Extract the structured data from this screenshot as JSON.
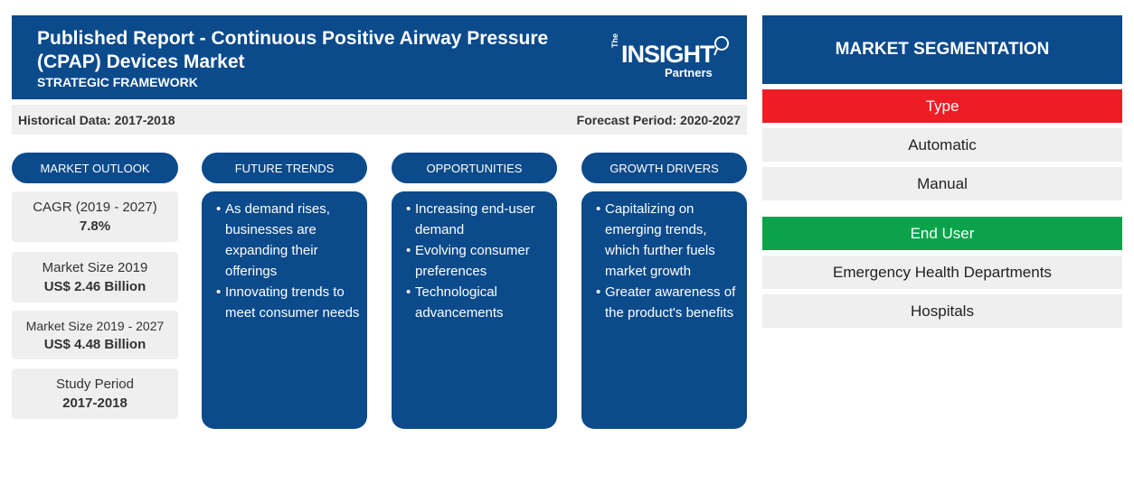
{
  "header": {
    "title": "Published Report - Continuous Positive Airway Pressure (CPAP) Devices Market",
    "subtitle": "STRATEGIC FRAMEWORK",
    "logo": {
      "the": "The",
      "insight": "INSIGHT",
      "partners": "Partners"
    }
  },
  "dates": {
    "historical": "Historical Data: 2017-2018",
    "forecast": "Forecast Period: 2020-2027"
  },
  "columns": {
    "outlook": "MARKET OUTLOOK",
    "trends": "FUTURE TRENDS",
    "opportunities": "OPPORTUNITIES",
    "drivers": "GROWTH DRIVERS"
  },
  "outlook": [
    {
      "label": "CAGR (2019 - 2027)",
      "value": "7.8%"
    },
    {
      "label": "Market Size 2019",
      "value": "US$ 2.46 Billion"
    },
    {
      "label": "Market Size 2019 - 2027",
      "value": "US$ 4.48 Billion"
    },
    {
      "label": "Study Period",
      "value": "2017-2018"
    }
  ],
  "trends": [
    "As demand rises, businesses are expanding their offerings",
    "Innovating trends to meet consumer needs"
  ],
  "opportunities": [
    "Increasing end-user demand",
    "Evolving consumer preferences",
    "Technological advancements"
  ],
  "drivers": [
    "Capitalizing on emerging trends, which further fuels market growth",
    "Greater awareness of the product's benefits"
  ],
  "segmentation": {
    "title": "MARKET SEGMENTATION",
    "type": {
      "label": "Type",
      "color": "#ee1c25",
      "items": [
        "Automatic",
        "Manual"
      ]
    },
    "end_user": {
      "label": "End User",
      "color": "#0aa24b",
      "items": [
        "Emergency Health Departments",
        "Hospitals"
      ]
    }
  },
  "colors": {
    "brand": "#0b4a8b",
    "panel": "#efefef"
  }
}
